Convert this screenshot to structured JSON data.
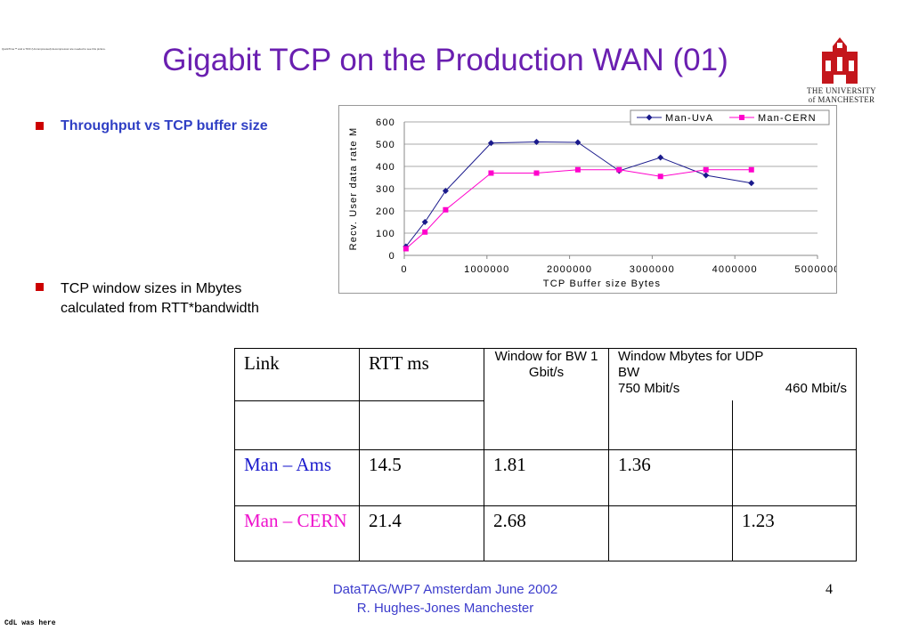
{
  "slide": {
    "title": "Gigabit TCP on the Production WAN (01)",
    "tiny_note": "QuickTime™ and a TIFF (Uncompressed) decompressor are needed to see this picture.",
    "university_line1": "THE UNIVERSITY",
    "university_line2": "of MANCHESTER",
    "bullet1": "Throughput vs TCP buffer size",
    "bullet2_line1": "TCP window sizes in Mbytes",
    "bullet2_line2": "calculated from RTT*bandwidth",
    "footer_line1": "DataTAG/WP7 Amsterdam June  2002",
    "footer_line2": "R. Hughes-Jones  Manchester",
    "page_number": "4",
    "corner_note": "CdL was here"
  },
  "table": {
    "header_link": "Link",
    "header_rtt": "RTT ms",
    "header_window_1g": "Window for BW 1 Gbit/s",
    "header_window_udp": "Window Mbytes for UDP BW",
    "sub_750": "750 Mbit/s",
    "sub_460": "460 Mbit/s",
    "rows": [
      {
        "link": "Man – Ams",
        "rtt": "14.5",
        "w1g": "1.81",
        "w750": "1.36",
        "w460": ""
      },
      {
        "link": "Man – CERN",
        "rtt": "21.4",
        "w1g": "2.68",
        "w750": "",
        "w460": "1.23"
      }
    ],
    "colors": {
      "row0_link": "#1a1acc",
      "row1_link": "#ee11cc"
    }
  },
  "chart_data": {
    "type": "line",
    "xlabel": "TCP Buffer size Bytes",
    "ylabel": "Recv. User data rate M",
    "xlim": [
      0,
      5000000
    ],
    "ylim": [
      0,
      600
    ],
    "x_ticks": [
      "0",
      "1000000",
      "2000000",
      "3000000",
      "4000000",
      "5000000"
    ],
    "y_ticks": [
      "0",
      "100",
      "200",
      "300",
      "400",
      "500",
      "600"
    ],
    "legend_position": "top-right",
    "series": [
      {
        "name": "Man-UvA",
        "color": "#1a1a8c",
        "marker": "diamond",
        "x": [
          20000,
          250000,
          500000,
          1050000,
          1600000,
          2100000,
          2600000,
          3100000,
          3650000,
          4200000
        ],
        "y": [
          40,
          150,
          290,
          505,
          510,
          508,
          380,
          440,
          360,
          325
        ]
      },
      {
        "name": "Man-CERN",
        "color": "#ff00cc",
        "marker": "square",
        "x": [
          20000,
          250000,
          500000,
          1050000,
          1600000,
          2100000,
          2600000,
          3100000,
          3650000,
          4200000
        ],
        "y": [
          30,
          105,
          205,
          370,
          370,
          385,
          385,
          355,
          385,
          385
        ]
      }
    ]
  }
}
